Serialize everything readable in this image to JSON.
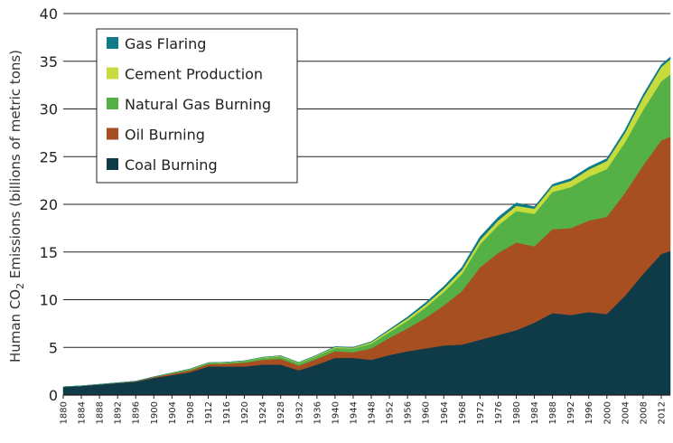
{
  "chart_data": {
    "type": "area",
    "stacked": true,
    "title": "",
    "xlabel": "",
    "ylabel": "Human CO2 Emissions (billions of metric tons)",
    "ylabel_parts": {
      "pre": "Human CO",
      "sub": "2",
      "post": " Emissions (billions of metric tons)"
    },
    "xlim": [
      1880,
      2014
    ],
    "ylim": [
      0,
      40
    ],
    "yticks": [
      0,
      5,
      10,
      15,
      20,
      25,
      30,
      35,
      40
    ],
    "grid": "horizontal",
    "legend_position": "top-left",
    "x": [
      1880,
      1884,
      1888,
      1892,
      1896,
      1900,
      1904,
      1908,
      1912,
      1916,
      1920,
      1924,
      1928,
      1932,
      1936,
      1940,
      1944,
      1948,
      1952,
      1956,
      1960,
      1964,
      1968,
      1972,
      1976,
      1980,
      1984,
      1988,
      1992,
      1996,
      2000,
      2004,
      2008,
      2012,
      2014
    ],
    "series": [
      {
        "name": "Coal Burning",
        "color": "#0f3a47",
        "values": [
          0.85,
          0.95,
          1.1,
          1.25,
          1.4,
          1.8,
          2.1,
          2.4,
          3.0,
          3.0,
          3.0,
          3.2,
          3.2,
          2.6,
          3.2,
          3.9,
          3.9,
          3.7,
          4.2,
          4.6,
          4.9,
          5.2,
          5.3,
          5.8,
          6.3,
          6.8,
          7.6,
          8.6,
          8.4,
          8.7,
          8.5,
          10.4,
          12.7,
          14.8,
          15.1
        ]
      },
      {
        "name": "Oil Burning",
        "color": "#a84f22",
        "values": [
          0.02,
          0.02,
          0.03,
          0.04,
          0.05,
          0.1,
          0.15,
          0.2,
          0.25,
          0.3,
          0.4,
          0.5,
          0.6,
          0.5,
          0.6,
          0.7,
          0.6,
          1.2,
          1.8,
          2.4,
          3.2,
          4.2,
          5.6,
          7.6,
          8.6,
          9.2,
          8.0,
          8.8,
          9.1,
          9.6,
          10.2,
          10.8,
          11.4,
          11.9,
          12.0
        ]
      },
      {
        "name": "Natural Gas Burning",
        "color": "#55b046",
        "values": [
          0,
          0,
          0,
          0,
          0,
          0,
          0.05,
          0.1,
          0.1,
          0.1,
          0.15,
          0.2,
          0.25,
          0.25,
          0.3,
          0.35,
          0.4,
          0.5,
          0.6,
          0.8,
          1.1,
          1.4,
          1.8,
          2.4,
          2.9,
          3.3,
          3.4,
          3.9,
          4.3,
          4.6,
          5.0,
          5.3,
          5.8,
          6.2,
          6.5
        ]
      },
      {
        "name": "Cement Production",
        "color": "#c7dc3c",
        "values": [
          0,
          0,
          0,
          0,
          0.01,
          0.02,
          0.03,
          0.04,
          0.05,
          0.05,
          0.05,
          0.06,
          0.07,
          0.06,
          0.08,
          0.1,
          0.08,
          0.15,
          0.2,
          0.25,
          0.3,
          0.35,
          0.4,
          0.45,
          0.5,
          0.55,
          0.55,
          0.6,
          0.65,
          0.75,
          0.85,
          1.0,
          1.3,
          1.5,
          1.6
        ]
      },
      {
        "name": "Gas Flaring",
        "color": "#0e7a8a",
        "values": [
          0,
          0,
          0,
          0,
          0,
          0,
          0,
          0,
          0,
          0,
          0,
          0.01,
          0.02,
          0.02,
          0.03,
          0.04,
          0.04,
          0.06,
          0.1,
          0.15,
          0.2,
          0.25,
          0.3,
          0.35,
          0.35,
          0.3,
          0.2,
          0.2,
          0.25,
          0.25,
          0.25,
          0.3,
          0.3,
          0.25,
          0.25
        ]
      }
    ],
    "legend_order": [
      "Gas Flaring",
      "Cement Production",
      "Natural Gas Burning",
      "Oil Burning",
      "Coal Burning"
    ],
    "xtick_labels": [
      "1880",
      "1884",
      "1888",
      "1892",
      "1896",
      "1900",
      "1904",
      "1908",
      "1912",
      "1916",
      "1920",
      "1924",
      "1928",
      "1932",
      "1936",
      "1940",
      "1944",
      "1948",
      "1952",
      "1956",
      "1960",
      "1964",
      "1968",
      "1972",
      "1976",
      "1980",
      "1984",
      "1988",
      "1992",
      "1996",
      "2000",
      "2004",
      "2008",
      "2012"
    ]
  }
}
